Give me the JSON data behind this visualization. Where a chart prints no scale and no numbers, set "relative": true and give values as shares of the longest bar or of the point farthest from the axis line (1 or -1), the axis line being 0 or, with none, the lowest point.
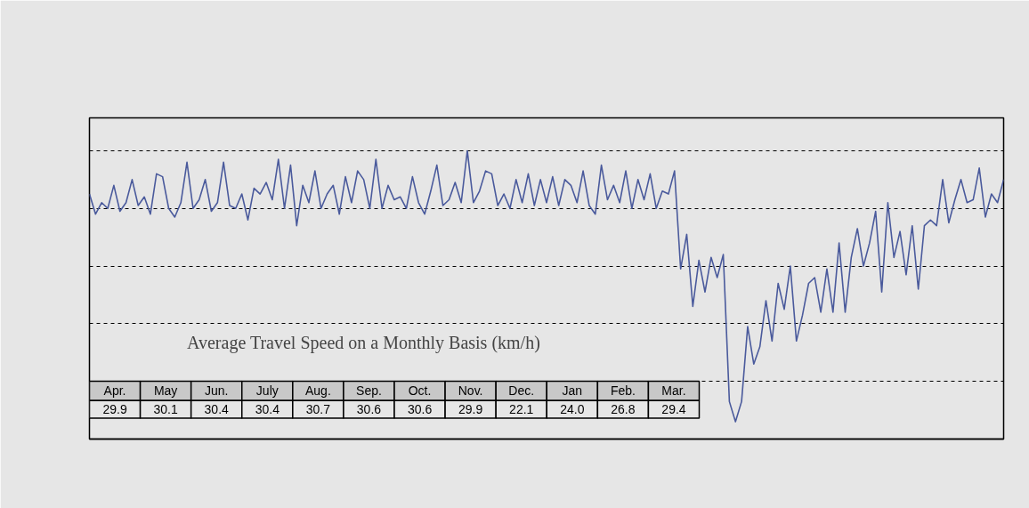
{
  "chart_data": {
    "type": "line",
    "relative": true,
    "categories": [
      null,
      null,
      null,
      null,
      null,
      null,
      null,
      null,
      null,
      null,
      null,
      null,
      null,
      null,
      null,
      null,
      null,
      null,
      null,
      null,
      null,
      null,
      null,
      null,
      null,
      null,
      null,
      null,
      null,
      null,
      null,
      null,
      null,
      null,
      null,
      null,
      null,
      null,
      null,
      null,
      null,
      null,
      null,
      null,
      null,
      null,
      null,
      null,
      null,
      null,
      null,
      null,
      null,
      null,
      null,
      null,
      null,
      null,
      null,
      null,
      null,
      null,
      null,
      null,
      null,
      null,
      null,
      null,
      null,
      null,
      null,
      null,
      null,
      null,
      null,
      null,
      null,
      null,
      null,
      null,
      null,
      null,
      null,
      null,
      null,
      null,
      null,
      null,
      null,
      null,
      null,
      null,
      null,
      null,
      null,
      null,
      null,
      null,
      null,
      null,
      null,
      null,
      null,
      null,
      null,
      null,
      null,
      null,
      null,
      null,
      null,
      null,
      null,
      null,
      null,
      null,
      null,
      null,
      null,
      null,
      null,
      null,
      null,
      null,
      null,
      null,
      null,
      null,
      null,
      null,
      null,
      null,
      null,
      null,
      null,
      null,
      null,
      null,
      null,
      null,
      null,
      null,
      null,
      null,
      null,
      null,
      null,
      null,
      null,
      null,
      null
    ],
    "color": "#4a5a9c",
    "grid": "y",
    "tick_labels": false,
    "values": [
      0.85,
      0.78,
      0.82,
      0.8,
      0.88,
      0.79,
      0.82,
      0.9,
      0.81,
      0.84,
      0.78,
      0.92,
      0.91,
      0.8,
      0.77,
      0.82,
      0.96,
      0.8,
      0.83,
      0.9,
      0.79,
      0.82,
      0.96,
      0.81,
      0.8,
      0.85,
      0.76,
      0.87,
      0.85,
      0.89,
      0.83,
      0.97,
      0.8,
      0.95,
      0.74,
      0.88,
      0.82,
      0.93,
      0.8,
      0.85,
      0.88,
      0.78,
      0.91,
      0.82,
      0.93,
      0.9,
      0.8,
      0.97,
      0.8,
      0.88,
      0.83,
      0.84,
      0.8,
      0.91,
      0.82,
      0.78,
      0.86,
      0.95,
      0.81,
      0.83,
      0.89,
      0.82,
      1.0,
      0.82,
      0.86,
      0.93,
      0.92,
      0.81,
      0.85,
      0.8,
      0.9,
      0.82,
      0.92,
      0.81,
      0.9,
      0.82,
      0.91,
      0.81,
      0.9,
      0.88,
      0.82,
      0.93,
      0.81,
      0.78,
      0.95,
      0.83,
      0.88,
      0.82,
      0.93,
      0.8,
      0.9,
      0.83,
      0.92,
      0.8,
      0.86,
      0.85,
      0.93,
      0.59,
      0.71,
      0.46,
      0.62,
      0.51,
      0.63,
      0.56,
      0.64,
      0.13,
      0.06,
      0.13,
      0.39,
      0.26,
      0.32,
      0.48,
      0.34,
      0.54,
      0.45,
      0.6,
      0.34,
      0.43,
      0.54,
      0.56,
      0.44,
      0.59,
      0.44,
      0.68,
      0.44,
      0.63,
      0.73,
      0.6,
      0.68,
      0.79,
      0.51,
      0.82,
      0.63,
      0.72,
      0.57,
      0.74,
      0.52,
      0.74,
      0.76,
      0.74,
      0.9,
      0.75,
      0.83,
      0.9,
      0.82,
      0.83,
      0.94,
      0.77,
      0.85,
      0.82,
      0.9
    ],
    "annotations": [
      "Average Travel Speed on a Monthly Basis (km/h)",
      "Apr.",
      "29.9",
      "May",
      "30.1",
      "Jun.",
      "30.4",
      "July",
      "30.4",
      "Aug.",
      "30.7",
      "Sep.",
      "30.6",
      "Oct.",
      "30.6",
      "Nov.",
      "29.9",
      "Dec.",
      "22.1",
      "Jan",
      "24.0",
      "Feb.",
      "26.8",
      "Mar.",
      "29.4"
    ]
  }
}
